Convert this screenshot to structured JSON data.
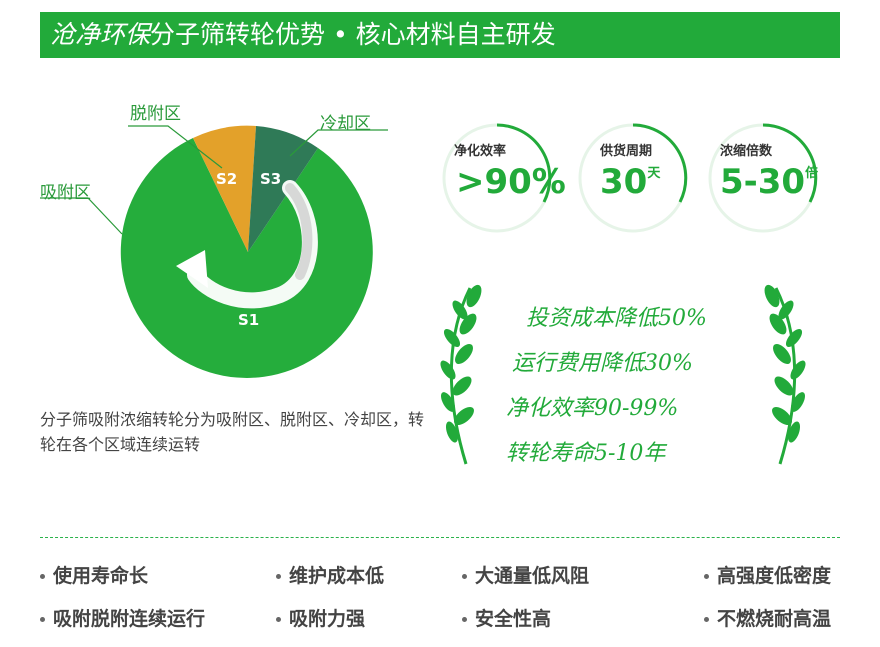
{
  "header": {
    "brand": "沧净环保",
    "title": "分子筛转轮优势 • 核心材料自主研发"
  },
  "diagram": {
    "zones": {
      "adsorption": "吸附区",
      "desorption": "脱附区",
      "cooling": "冷却区"
    },
    "segments": {
      "s1": "S1",
      "s2": "S2",
      "s3": "S3"
    },
    "colors": {
      "adsorption": "#25ad3c",
      "desorption": "#e3a12a",
      "cooling": "#2f7a57",
      "arrow": "#ffffff"
    },
    "caption": "分子筛吸附浓缩转轮分为吸附区、脱附区、冷却区，转轮在各个区域连续运转"
  },
  "stats": [
    {
      "label": "净化效率",
      "value": ">90%",
      "unit": ""
    },
    {
      "label": "供货周期",
      "value": "30",
      "unit": "天"
    },
    {
      "label": "浓缩倍数",
      "value": "5-30",
      "unit": "倍"
    }
  ],
  "benefits": [
    "投资成本降低50%",
    "运行费用降低30%",
    "净化效率90-99%",
    "转轮寿命5-10年"
  ],
  "features": [
    "使用寿命长",
    "维护成本低",
    "大通量低风阻",
    "高强度低密度",
    "吸附脱附连续运行",
    "吸附力强",
    "安全性高",
    "不燃烧耐高温"
  ],
  "theme": {
    "accent": "#22aa3a"
  }
}
